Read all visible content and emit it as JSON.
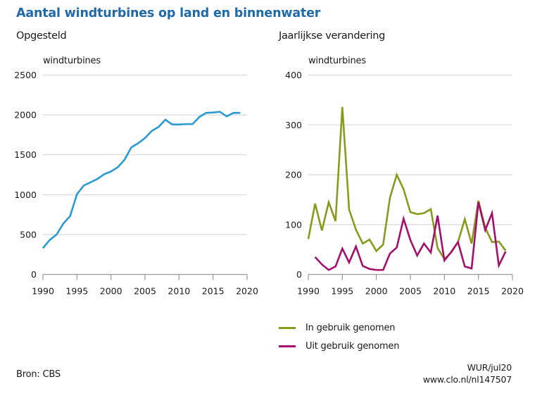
{
  "title": "Aantal windturbines op land en binnenwater",
  "source": "Bron: CBS",
  "credit": {
    "line1": "WUR/jul20",
    "line2": "www.clo.nl/nl147507"
  },
  "colors": {
    "title": "#1f6aa8",
    "opgesteld": "#2a9ad4",
    "in_gebruik": "#8a9a1c",
    "uit_gebruik": "#a3106c",
    "grid": "#d9d9d9",
    "axis": "#999999"
  },
  "chart_data": [
    {
      "type": "line",
      "title": "Opgesteld",
      "ylabel": "windturbines",
      "xlabel": "",
      "xlim": [
        1990,
        2020
      ],
      "ylim": [
        0,
        2500
      ],
      "x_ticks": [
        1990,
        1995,
        2000,
        2005,
        2010,
        2015,
        2020
      ],
      "y_ticks": [
        0,
        500,
        1000,
        1500,
        2000,
        2500
      ],
      "grid": true,
      "x": [
        1990,
        1991,
        1992,
        1993,
        1994,
        1995,
        1996,
        1997,
        1998,
        1999,
        2000,
        2001,
        2002,
        2003,
        2004,
        2005,
        2006,
        2007,
        2008,
        2009,
        2010,
        2011,
        2012,
        2013,
        2014,
        2015,
        2016,
        2017,
        2018,
        2019
      ],
      "series": [
        {
          "name": "Opgesteld",
          "color": "#2a9ad4",
          "values": [
            330,
            432,
            500,
            638,
            732,
            1006,
            1115,
            1155,
            1197,
            1256,
            1291,
            1344,
            1439,
            1595,
            1645,
            1710,
            1800,
            1850,
            1940,
            1880,
            1880,
            1885,
            1885,
            1976,
            2026,
            2030,
            2040,
            1982,
            2026,
            2026
          ]
        }
      ]
    },
    {
      "type": "line",
      "title": "Jaarlijkse verandering",
      "ylabel": "windturbines",
      "xlabel": "",
      "xlim": [
        1990,
        2020
      ],
      "ylim": [
        0,
        400
      ],
      "x_ticks": [
        1990,
        1995,
        2000,
        2005,
        2010,
        2015,
        2020
      ],
      "y_ticks": [
        0,
        100,
        200,
        300,
        400
      ],
      "grid": true,
      "legend": "bottom-left",
      "series": [
        {
          "name": "In gebruik genomen",
          "color": "#8a9a1c",
          "x": [
            1990,
            1991,
            1992,
            1993,
            1994,
            1995,
            1996,
            1997,
            1998,
            1999,
            2000,
            2001,
            2002,
            2003,
            2004,
            2005,
            2006,
            2007,
            2008,
            2009,
            2010,
            2011,
            2012,
            2013,
            2014,
            2015,
            2016,
            2017,
            2018,
            2019
          ],
          "values": [
            71,
            142,
            88,
            145,
            107,
            336,
            130,
            90,
            62,
            70,
            47,
            60,
            154,
            200,
            171,
            125,
            121,
            123,
            131,
            53,
            31,
            44,
            65,
            111,
            62,
            148,
            94,
            65,
            66,
            48
          ]
        },
        {
          "name": "Uit gebruik genomen",
          "color": "#a3106c",
          "x": [
            1991,
            1992,
            1993,
            1994,
            1995,
            1996,
            1997,
            1998,
            1999,
            2000,
            2001,
            2002,
            2003,
            2004,
            2005,
            2006,
            2007,
            2008,
            2009,
            2010,
            2011,
            2012,
            2013,
            2014,
            2015,
            2016,
            2017,
            2018,
            2019
          ],
          "values": [
            35,
            20,
            9,
            16,
            52,
            24,
            56,
            17,
            11,
            9,
            9,
            42,
            54,
            112,
            69,
            38,
            62,
            44,
            118,
            28,
            45,
            65,
            16,
            12,
            145,
            89,
            123,
            18,
            46
          ]
        }
      ]
    }
  ]
}
